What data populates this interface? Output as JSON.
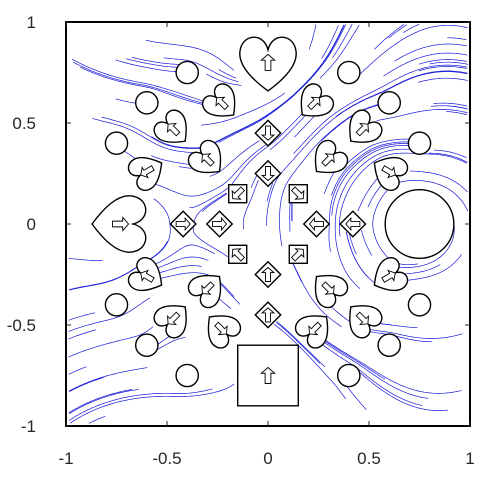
{
  "chart_data": {
    "type": "streamline",
    "title": "",
    "xlabel": "",
    "ylabel": "",
    "xlim": [
      -1,
      1
    ],
    "ylim": [
      -1,
      1
    ],
    "xticks": [
      -1,
      -0.5,
      0,
      0.5,
      1
    ],
    "yticks": [
      -1,
      -0.5,
      0,
      0.5,
      1
    ],
    "xtick_labels": [
      "-1",
      "-0.5",
      "0",
      "0.5",
      "1"
    ],
    "ytick_labels": [
      "-1",
      "-0.5",
      "0",
      "0.5",
      "1"
    ],
    "grid": false,
    "colors": {
      "streamline": "#1a1ad9",
      "outline": "#000000",
      "axis": "#262626"
    },
    "big_hearts": [
      {
        "x": 0.0,
        "y": 0.8,
        "size": 0.27,
        "rot": 0
      },
      {
        "x": -0.73,
        "y": 0.0,
        "size": 0.27,
        "rot": 90
      }
    ],
    "small_hearts": [
      {
        "x": -0.23,
        "y": 0.6,
        "rot": -45
      },
      {
        "x": 0.23,
        "y": 0.6,
        "rot": 45
      },
      {
        "x": -0.47,
        "y": 0.47,
        "rot": -45
      },
      {
        "x": 0.47,
        "y": 0.47,
        "rot": 45
      },
      {
        "x": -0.6,
        "y": 0.26,
        "rot": -120
      },
      {
        "x": 0.6,
        "y": 0.26,
        "rot": 120
      },
      {
        "x": -0.3,
        "y": 0.32,
        "rot": -45
      },
      {
        "x": 0.3,
        "y": 0.32,
        "rot": 45
      },
      {
        "x": -0.6,
        "y": -0.26,
        "rot": -60
      },
      {
        "x": 0.6,
        "y": -0.26,
        "rot": 60
      },
      {
        "x": -0.3,
        "y": -0.32,
        "rot": -135
      },
      {
        "x": 0.3,
        "y": -0.32,
        "rot": 135
      },
      {
        "x": -0.47,
        "y": -0.47,
        "rot": -135
      },
      {
        "x": 0.47,
        "y": -0.47,
        "rot": 135
      },
      {
        "x": -0.23,
        "y": -0.52,
        "rot": 135
      },
      {
        "x": 0.23,
        "y": -0.52,
        "rot": -135
      }
    ],
    "diamonds": [
      {
        "x": 0.0,
        "y": 0.45,
        "rot": 180
      },
      {
        "x": 0.0,
        "y": 0.25,
        "rot": 180
      },
      {
        "x": -0.15,
        "y": 0.15,
        "rot": 225
      },
      {
        "x": 0.15,
        "y": 0.15,
        "rot": 135
      },
      {
        "x": -0.42,
        "y": 0.0,
        "rot": 90
      },
      {
        "x": -0.24,
        "y": 0.0,
        "rot": 90
      },
      {
        "x": 0.24,
        "y": 0.0,
        "rot": -90
      },
      {
        "x": 0.42,
        "y": 0.0,
        "rot": -90
      },
      {
        "x": -0.15,
        "y": -0.15,
        "rot": 315
      },
      {
        "x": 0.15,
        "y": -0.15,
        "rot": 45
      },
      {
        "x": 0.0,
        "y": -0.25,
        "rot": 0
      },
      {
        "x": 0.0,
        "y": -0.45,
        "rot": 0
      }
    ],
    "small_circles": [
      {
        "x": -0.4,
        "y": 0.75
      },
      {
        "x": 0.4,
        "y": 0.75
      },
      {
        "x": -0.6,
        "y": 0.6
      },
      {
        "x": 0.6,
        "y": 0.6
      },
      {
        "x": -0.75,
        "y": 0.4
      },
      {
        "x": 0.75,
        "y": 0.4
      },
      {
        "x": -0.75,
        "y": -0.4
      },
      {
        "x": 0.75,
        "y": -0.4
      },
      {
        "x": -0.6,
        "y": -0.6
      },
      {
        "x": 0.6,
        "y": -0.6
      },
      {
        "x": -0.4,
        "y": -0.75
      },
      {
        "x": 0.4,
        "y": -0.75
      }
    ],
    "big_circle": {
      "x": 0.75,
      "y": 0.0,
      "r": 0.17
    },
    "square": {
      "x": 0.0,
      "y": -0.75,
      "half": 0.15,
      "rot": 0
    }
  }
}
